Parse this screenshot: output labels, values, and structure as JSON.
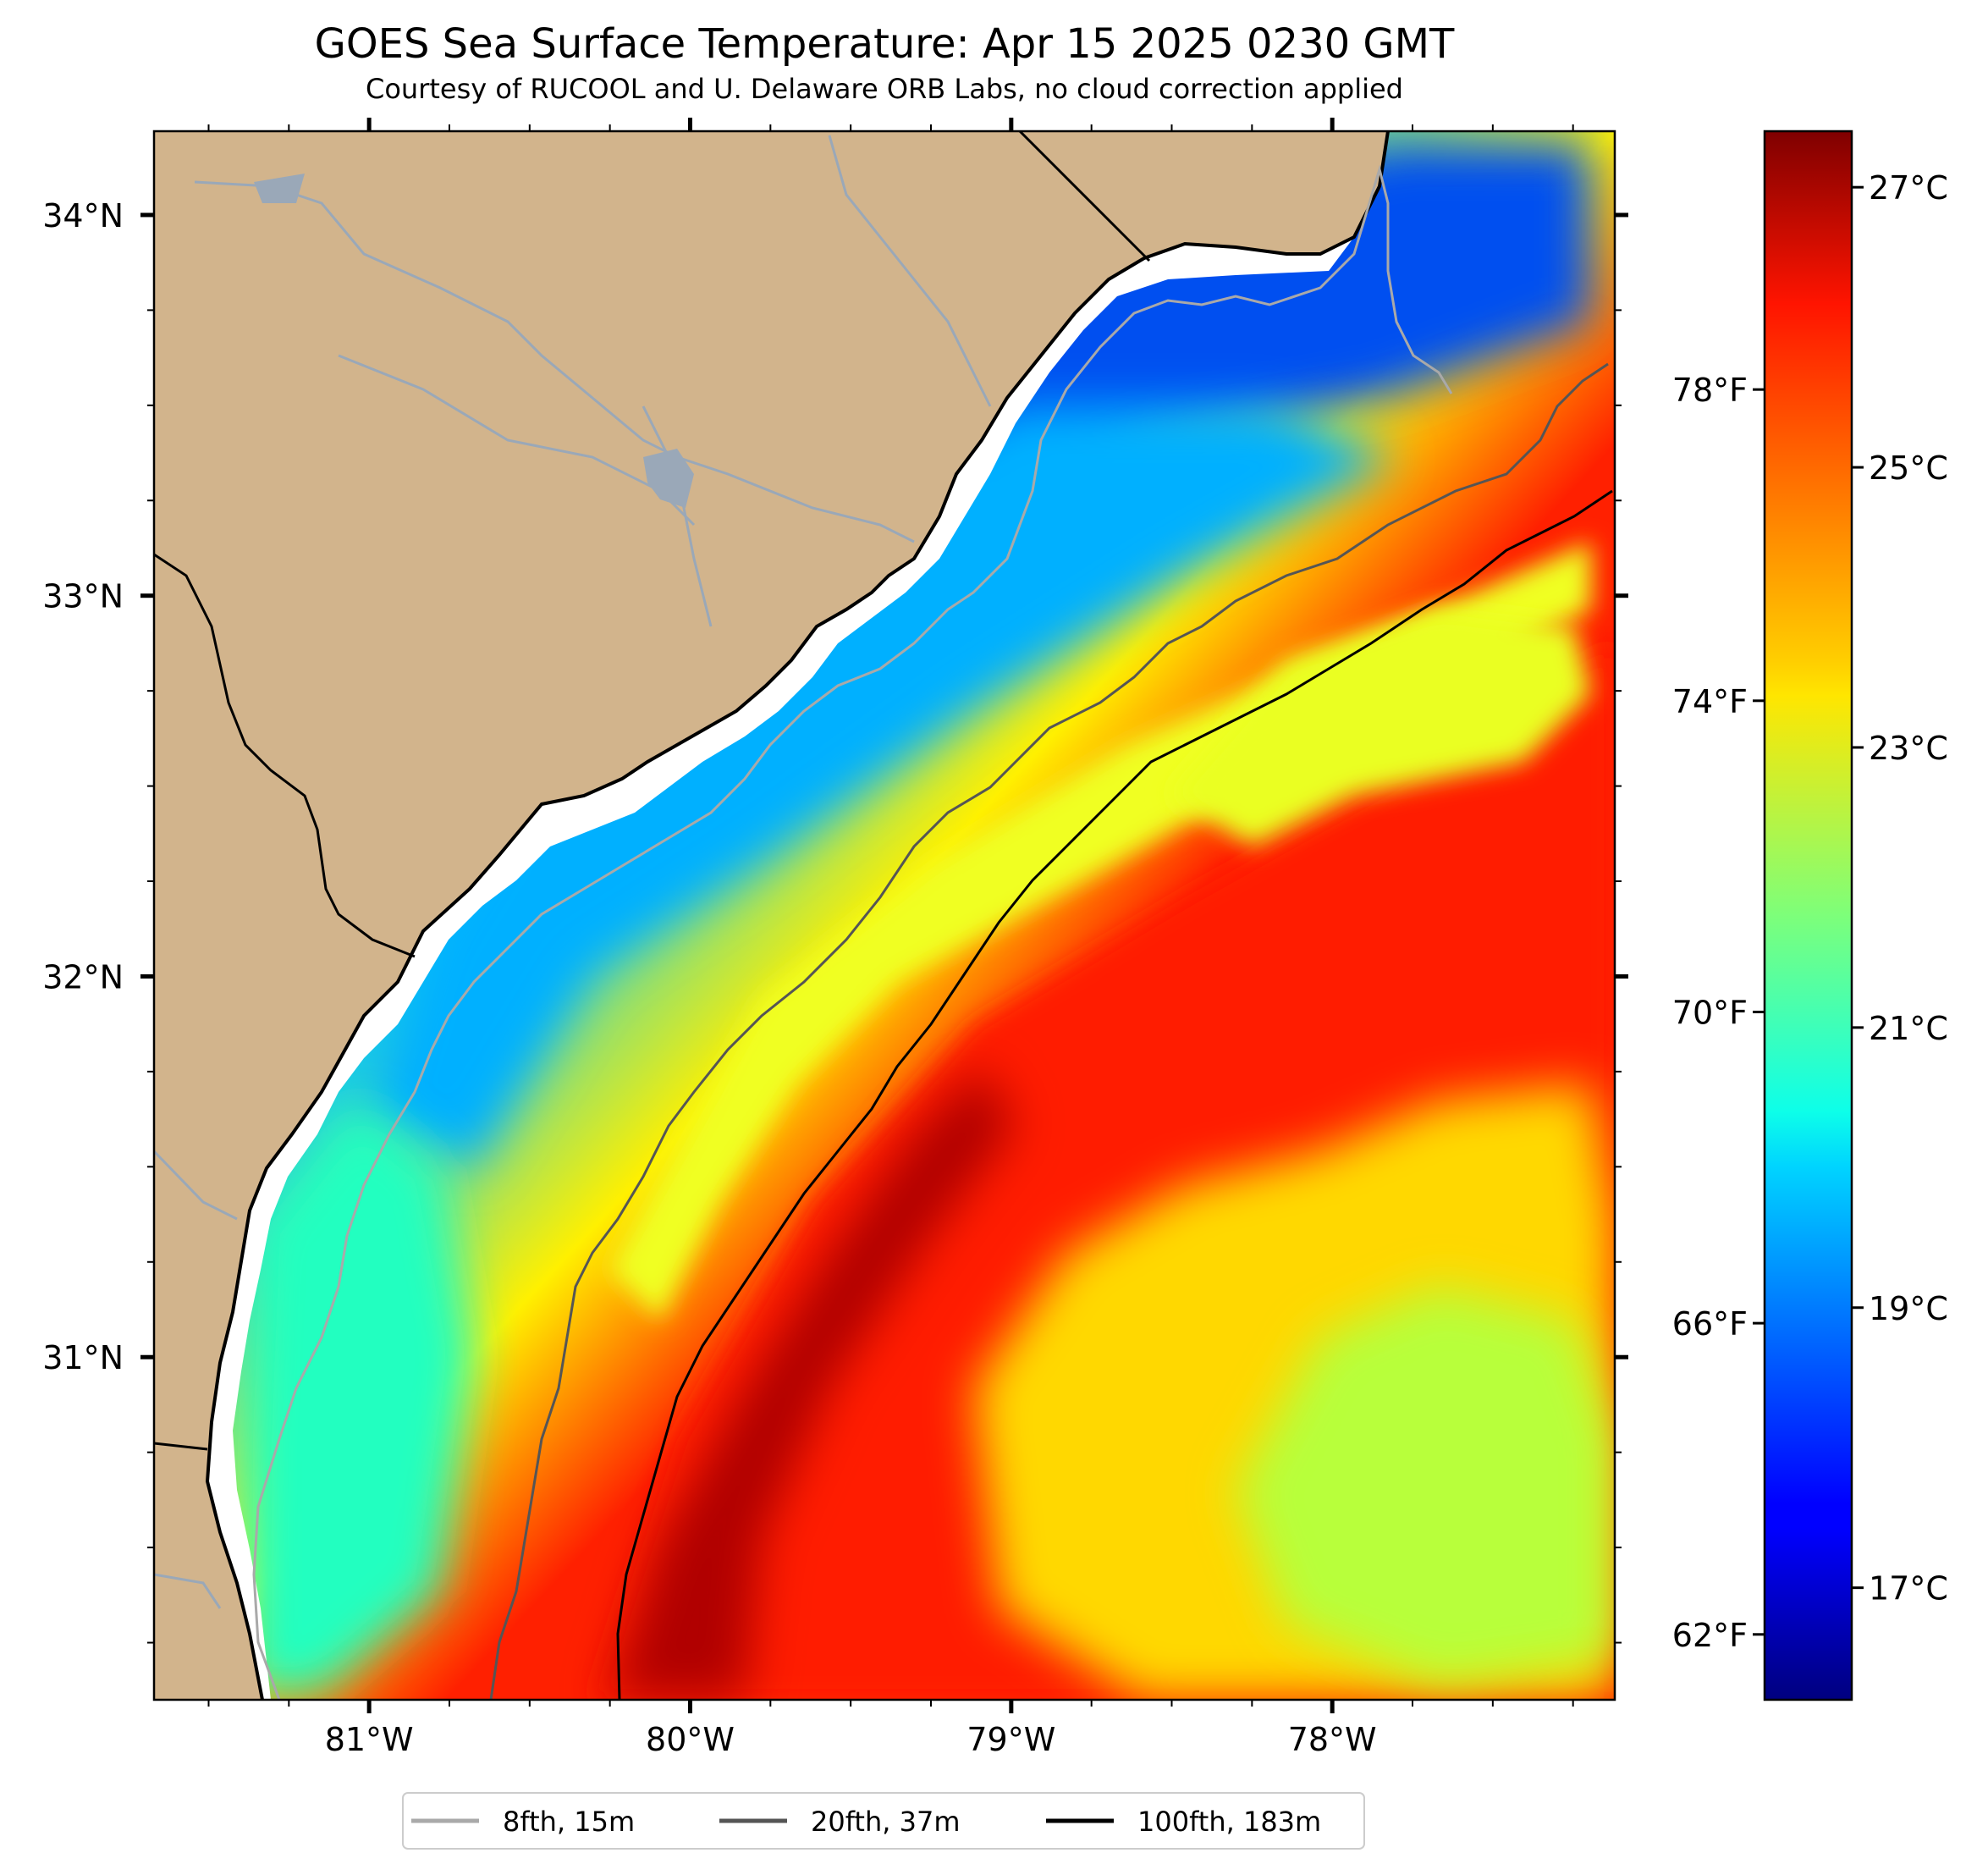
{
  "title": "GOES Sea Surface Temperature: Apr 15 2025 0230 GMT",
  "subtitle": "Courtesy of RUCOOL and U. Delaware ORB Labs, no cloud correction applied",
  "map": {
    "lon_range": [
      -81.67,
      -77.12
    ],
    "lat_range": [
      30.1,
      34.22
    ],
    "lon_ticks": [
      {
        "value": -81,
        "label": "81°W"
      },
      {
        "value": -80,
        "label": "80°W"
      },
      {
        "value": -79,
        "label": "79°W"
      },
      {
        "value": -78,
        "label": "78°W"
      }
    ],
    "lat_ticks": [
      {
        "value": 34,
        "label": "34°N"
      },
      {
        "value": 33,
        "label": "33°N"
      },
      {
        "value": 32,
        "label": "32°N"
      },
      {
        "value": 31,
        "label": "31°N"
      }
    ],
    "land_color": "#d2b48c",
    "river_color": "#9aa8b8"
  },
  "colorbar": {
    "vmin": 16.2,
    "vmax": 27.4,
    "colormap": "jet",
    "celsius_ticks": [
      {
        "value": 27,
        "label": "27°C"
      },
      {
        "value": 25,
        "label": "25°C"
      },
      {
        "value": 23,
        "label": "23°C"
      },
      {
        "value": 21,
        "label": "21°C"
      },
      {
        "value": 19,
        "label": "19°C"
      },
      {
        "value": 17,
        "label": "17°C"
      }
    ],
    "fahrenheit_ticks": [
      {
        "value": 78,
        "label": "78°F"
      },
      {
        "value": 74,
        "label": "74°F"
      },
      {
        "value": 70,
        "label": "70°F"
      },
      {
        "value": 66,
        "label": "66°F"
      },
      {
        "value": 62,
        "label": "62°F"
      }
    ]
  },
  "legend": {
    "placement": "bottom-center",
    "items": [
      {
        "label": "8fth, 15m",
        "color": "#a9a9a9"
      },
      {
        "label": "20fth, 37m",
        "color": "#555555"
      },
      {
        "label": "100fth, 183m",
        "color": "#000000"
      }
    ]
  }
}
